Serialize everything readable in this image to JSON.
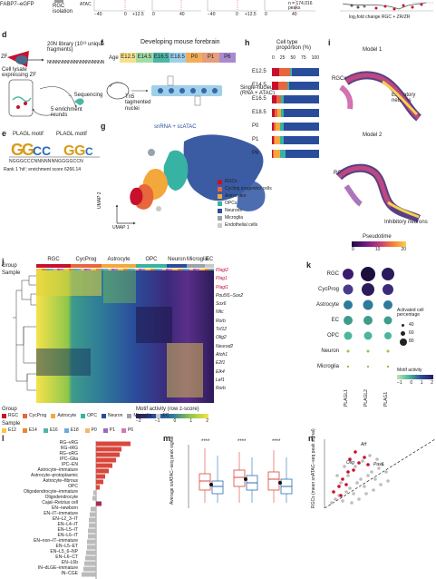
{
  "top": {
    "fabp7": "FABP7–eGFP",
    "rgc_isolation": "RGC isolation",
    "atac_axis": "ATAC",
    "ticks_a": [
      "−40",
      "0",
      "+12.5",
      "0",
      "40",
      "−40",
      "0",
      "+12.5",
      "0",
      "40"
    ],
    "peaks_note": "n = 174,016 peaks",
    "logfold": "log₂fold change RGC + ZR/ZR"
  },
  "d": {
    "letter": "d",
    "zf": "ZF",
    "lib": "20N library (10¹³ unique fragments)",
    "nnn": "NNNNNNNNNNNNNNNNNNN",
    "cell_lysate": "Cell lysate expressing ZF",
    "seq": "→ Sequencing",
    "rounds": "5 enrichment rounds"
  },
  "e": {
    "letter": "e",
    "motif1": "PLAGL motif",
    "motif2": "PLAGL motif",
    "seq": "NGGGCCCNNNNNNNGGGGCCN",
    "rank": "Rank 1 'hit'; enrichment score 6266.14"
  },
  "f": {
    "letter": "f",
    "title": "Developing mouse forebrain",
    "age_label": "Age",
    "ages": [
      "E12.5",
      "E14.5",
      "E16.5",
      "E18.5",
      "P0",
      "P1",
      "P6"
    ],
    "tn5": "Tn5 tagmented nuclei",
    "single": "Single-nucleus (RNA + ATAC)"
  },
  "g": {
    "letter": "g",
    "title": "snRNA + scATAC",
    "umap1": "UMAP 1",
    "umap2": "UMAP 2",
    "legend": [
      {
        "name": "RGCs",
        "color": "#c8102e"
      },
      {
        "name": "Cycling progenitor cells",
        "color": "#e8663b"
      },
      {
        "name": "Astrocytes",
        "color": "#f3a83b"
      },
      {
        "name": "OPCs",
        "color": "#37b3a3"
      },
      {
        "name": "Neurons",
        "color": "#2a4d9b"
      },
      {
        "name": "Microglia",
        "color": "#9aa3ad"
      },
      {
        "name": "Endothelial cells",
        "color": "#c9c9c9"
      }
    ]
  },
  "h": {
    "letter": "h",
    "title": "Cell type proportion (%)",
    "xticks": [
      "0",
      "25",
      "50",
      "75",
      "100"
    ]
  },
  "i": {
    "letter": "i",
    "model1": "Model 1",
    "model2": "Model 2",
    "rgcs1": "RGCs",
    "exc": "Excitatory neurons",
    "rgcs2": "RGCs",
    "inh": "Inhibitory neurons",
    "pseudotime": "Pseudotime",
    "pt_ticks": [
      "0",
      "10",
      "20"
    ]
  },
  "j": {
    "letter": "j",
    "group_label": "Group",
    "sample_label": "Sample",
    "cols": [
      "RGC",
      "CycProg",
      "Astrocyte",
      "OPC",
      "Neuron",
      "Microglia",
      "EC"
    ],
    "genes": [
      "Plagl2",
      "Plag1",
      "Plagl1",
      "Pou5f1–Sox2",
      "Sox6",
      "Nfic",
      "Rorb",
      "Tcf12",
      "Olig2",
      "Neurod2",
      "Atoh1",
      "E2f1",
      "Elk4",
      "Lef1",
      "Rorb"
    ],
    "motif_title": "Motif activity (row z-score)",
    "motif_ticks": [
      "−2",
      "−1",
      "0",
      "1",
      "2"
    ],
    "legend_group": "Group",
    "legend_group_items": [
      {
        "name": "RGC",
        "color": "#c8102e"
      },
      {
        "name": "CycProg",
        "color": "#e8663b"
      },
      {
        "name": "Astrocyte",
        "color": "#f3a83b"
      },
      {
        "name": "OPC",
        "color": "#37b3a3"
      },
      {
        "name": "Neuron",
        "color": "#2a4d9b"
      },
      {
        "name": "Microglia",
        "color": "#9aa3ad"
      },
      {
        "name": "EC",
        "color": "#c9c9c9"
      }
    ],
    "legend_sample": "Sample",
    "legend_sample_items": [
      {
        "name": "E12",
        "color": "#f6c843"
      },
      {
        "name": "E14",
        "color": "#e8882b"
      },
      {
        "name": "E16",
        "color": "#4cb6a6"
      },
      {
        "name": "E18",
        "color": "#6fa8dc"
      },
      {
        "name": "P0",
        "color": "#f0b86e"
      },
      {
        "name": "P1",
        "color": "#a065c0"
      },
      {
        "name": "P6",
        "color": "#d17ab0"
      }
    ]
  },
  "k": {
    "letter": "k",
    "rows": [
      "RGC",
      "CycProg",
      "Astrocyte",
      "EC",
      "OPC",
      "Neuron",
      "Microglia"
    ],
    "cols": [
      "PLAGL1",
      "PLAGL2",
      "PLAG1"
    ],
    "size_title": "Activated cell percentage",
    "size_ticks": [
      "40",
      "60",
      "80"
    ],
    "color_title": "Motif activity",
    "color_ticks": [
      "−1",
      "0",
      "1",
      "2"
    ]
  },
  "l": {
    "letter": "l",
    "labels": [
      "RG–vRG",
      "RG–tRG",
      "RG–oRG",
      "IPC–Glia",
      "IPC–EN",
      "Astrocyte–immature",
      "Astrocyte–protoplasmic",
      "Astrocyte–fibrous",
      "OPC",
      "Oligodendrocyte–immature",
      "Oligodendrocyte",
      "Cajal–Retzius cell",
      "EN–newborn",
      "EN–IT–immature",
      "EN–L2_3–IT",
      "EN–L4–IT",
      "EN–L5–IT",
      "EN–L6–IT",
      "EN–non–IT–immature",
      "EN–L5–ET",
      "EN–L5_6–NP",
      "EN–L6–CT",
      "EN–L6b",
      "IN–dLGE–immature",
      "IN–CGE"
    ]
  },
  "m": {
    "letter": "m",
    "ylabel": "Average snATAC–seq peak signal",
    "stars": [
      "****",
      "****",
      "****"
    ]
  },
  "n": {
    "letter": "n",
    "ylabel": "RGCs (mean snATAC–seq peak signal)",
    "genes": [
      "Atf",
      "Olig",
      "Pax6"
    ]
  }
}
